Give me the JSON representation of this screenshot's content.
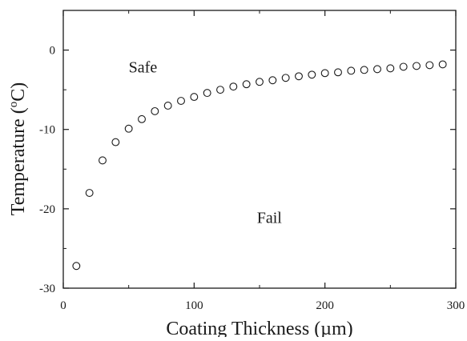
{
  "chart_data": {
    "type": "scatter",
    "title": "",
    "xlabel": "Coating Thickness (µm)",
    "ylabel": "Temperature (°C)",
    "ylabel_parts": {
      "pre": "Temperature (",
      "sup": "o",
      "post": "C)"
    },
    "xlim": [
      0,
      300
    ],
    "ylim": [
      -30,
      5
    ],
    "xticks": [
      0,
      100,
      200,
      300
    ],
    "yticks": [
      -30,
      -20,
      -10,
      0
    ],
    "xticks_labels": [
      "0",
      "100",
      "200",
      "300"
    ],
    "yticks_labels": [
      "-30",
      "-20",
      "-10",
      "0"
    ],
    "grid": false,
    "marker": "open-circle",
    "series": [
      {
        "x": [
          10,
          20,
          30,
          40,
          50,
          60,
          70,
          80,
          90,
          100,
          110,
          120,
          130,
          140,
          150,
          160,
          170,
          180,
          190,
          200,
          210,
          220,
          230,
          240,
          250,
          260,
          270,
          280,
          290
        ],
        "y": [
          -27.2,
          -18.0,
          -13.9,
          -11.6,
          -9.9,
          -8.7,
          -7.7,
          -7.0,
          -6.4,
          -5.9,
          -5.4,
          -5.0,
          -4.6,
          -4.3,
          -4.0,
          -3.8,
          -3.5,
          -3.3,
          -3.1,
          -2.9,
          -2.8,
          -2.6,
          -2.5,
          -2.4,
          -2.3,
          -2.1,
          -2.0,
          -1.9,
          -1.8
        ]
      }
    ],
    "annotations": [
      {
        "text": "Safe",
        "x": 50,
        "y": -2.8
      },
      {
        "text": "Fail",
        "x": 148,
        "y": -21.8
      }
    ]
  }
}
